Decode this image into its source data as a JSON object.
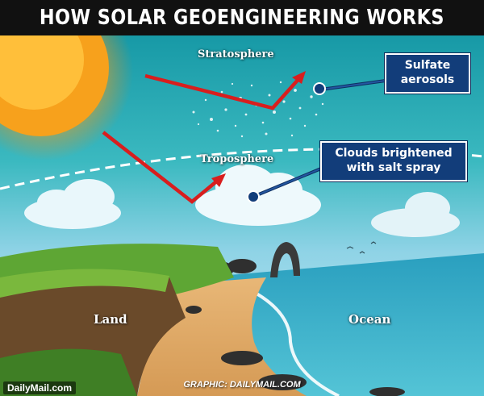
{
  "header": {
    "title": "HOW SOLAR GEOENGINEERING WORKS"
  },
  "atmosphere": {
    "stratosphere_label": "Stratosphere",
    "troposphere_label": "Troposphere"
  },
  "callouts": {
    "aerosols": {
      "line1": "Sulfate",
      "line2": "aerosols"
    },
    "clouds": {
      "line1": "Clouds brightened",
      "line2": "with salt spray"
    }
  },
  "ground": {
    "land_label": "Land",
    "ocean_label": "Ocean"
  },
  "footer": {
    "brand": "DailyMail.com",
    "credit": "GRAPHIC: DAILYMAIL.COM"
  },
  "colors": {
    "arrow": "#d81e1e",
    "callout_fill": "#123d7a",
    "sky_top": "#1fa7a8",
    "sky_bottom": "#a6ddec",
    "sun": "#f6a31a",
    "ocean": "#3fb3cf",
    "grass": "#5ea634"
  },
  "icons": [
    "sun-icon",
    "cloud-icon",
    "bird-icon",
    "arrow-icon"
  ]
}
